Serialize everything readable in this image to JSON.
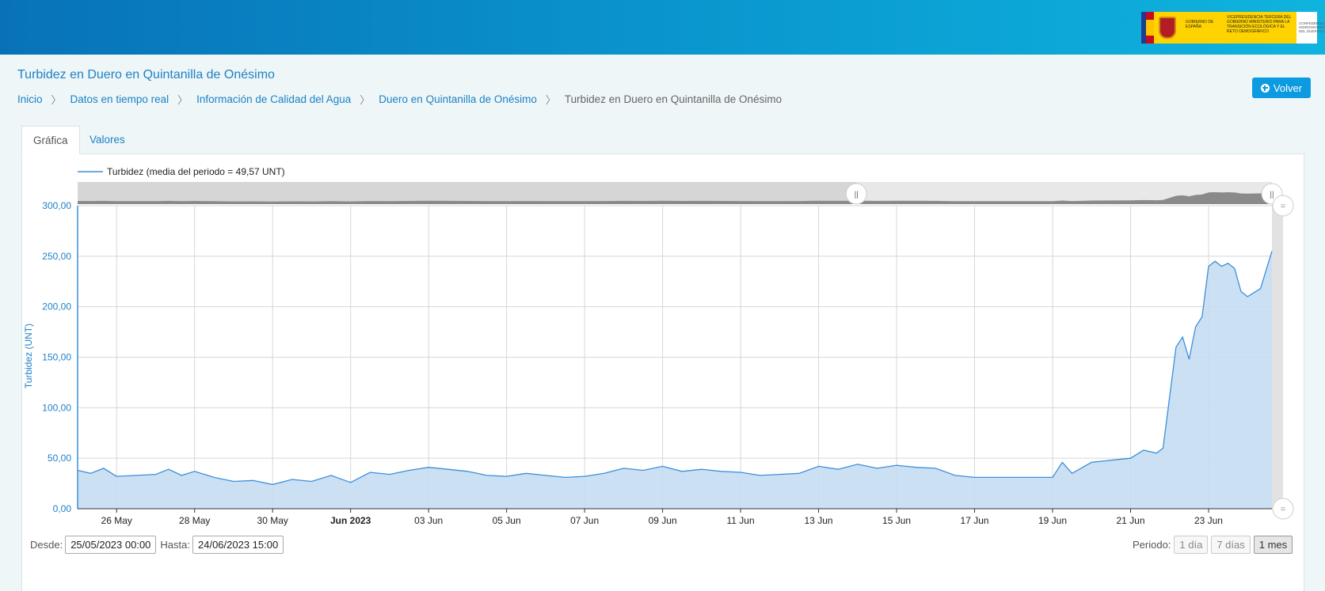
{
  "header": {
    "logo_left": "GOBIERNO DE ESPAÑA",
    "logo_mid": "VICEPRESIDENCIA TERCERA DEL GOBIERNO MINISTERIO PARA LA TRANSICIÓN ECOLÓGICA Y EL RETO DEMOGRÁFICO",
    "logo_right": "CONFEDERACIÓN HIDROGRÁFICA DEL DUERO O.A."
  },
  "page": {
    "title": "Turbidez en Duero en Quintanilla de Onésimo",
    "back_label": "Volver"
  },
  "breadcrumb": [
    "Inicio",
    "Datos en tiempo real",
    "Información de Calidad del Agua",
    "Duero en Quintanilla de Onésimo",
    "Turbidez en Duero en Quintanilla de Onésimo"
  ],
  "tabs": [
    "Gráfica",
    "Valores"
  ],
  "controls": {
    "desde_label": "Desde:",
    "desde_value": "25/05/2023 00:00",
    "hasta_label": "Hasta:",
    "hasta_value": "24/06/2023 15:00",
    "periodo_label": "Periodo:",
    "periodo_options": [
      "1 día",
      "7 días",
      "1 mes"
    ],
    "periodo_selected": "1 mes"
  },
  "colors": {
    "line": "#3b8fd9",
    "area": "#c6ddf3",
    "link": "#1d82c6",
    "button": "#0c9ae0"
  },
  "chart_data": {
    "type": "area",
    "legend": "Turbidez  (media del periodo = 49,57 UNT)",
    "ylabel": "Turbidez (UNT)",
    "ylim": [
      0,
      300
    ],
    "yticks": [
      "0,00",
      "50,00",
      "100,00",
      "150,00",
      "200,00",
      "250,00",
      "300,00"
    ],
    "x_range": [
      "2023-05-25 00:00",
      "2023-06-24 15:00"
    ],
    "xticks": [
      {
        "date": "2023-05-26",
        "label": "26 May"
      },
      {
        "date": "2023-05-28",
        "label": "28 May"
      },
      {
        "date": "2023-05-30",
        "label": "30 May"
      },
      {
        "date": "2023-06-01",
        "label": "Jun 2023",
        "bold": true
      },
      {
        "date": "2023-06-03",
        "label": "03 Jun"
      },
      {
        "date": "2023-06-05",
        "label": "05 Jun"
      },
      {
        "date": "2023-06-07",
        "label": "07 Jun"
      },
      {
        "date": "2023-06-09",
        "label": "09 Jun"
      },
      {
        "date": "2023-06-11",
        "label": "11 Jun"
      },
      {
        "date": "2023-06-13",
        "label": "13 Jun"
      },
      {
        "date": "2023-06-15",
        "label": "15 Jun"
      },
      {
        "date": "2023-06-17",
        "label": "17 Jun"
      },
      {
        "date": "2023-06-19",
        "label": "19 Jun"
      },
      {
        "date": "2023-06-21",
        "label": "21 Jun"
      },
      {
        "date": "2023-06-23",
        "label": "23 Jun"
      }
    ],
    "series": [
      {
        "name": "Turbidez",
        "points": [
          [
            "2023-05-25 00:00",
            38
          ],
          [
            "2023-05-25 08:00",
            35
          ],
          [
            "2023-05-25 16:00",
            40
          ],
          [
            "2023-05-26 00:00",
            32
          ],
          [
            "2023-05-26 12:00",
            33
          ],
          [
            "2023-05-27 00:00",
            34
          ],
          [
            "2023-05-27 08:00",
            39
          ],
          [
            "2023-05-27 16:00",
            33
          ],
          [
            "2023-05-28 00:00",
            37
          ],
          [
            "2023-05-28 12:00",
            31
          ],
          [
            "2023-05-29 00:00",
            27
          ],
          [
            "2023-05-29 12:00",
            28
          ],
          [
            "2023-05-30 00:00",
            24
          ],
          [
            "2023-05-30 12:00",
            29
          ],
          [
            "2023-05-31 00:00",
            27
          ],
          [
            "2023-05-31 12:00",
            33
          ],
          [
            "2023-06-01 00:00",
            26
          ],
          [
            "2023-06-01 12:00",
            36
          ],
          [
            "2023-06-02 00:00",
            34
          ],
          [
            "2023-06-02 12:00",
            38
          ],
          [
            "2023-06-03 00:00",
            41
          ],
          [
            "2023-06-03 12:00",
            39
          ],
          [
            "2023-06-04 00:00",
            37
          ],
          [
            "2023-06-04 12:00",
            33
          ],
          [
            "2023-06-05 00:00",
            32
          ],
          [
            "2023-06-05 12:00",
            35
          ],
          [
            "2023-06-06 00:00",
            33
          ],
          [
            "2023-06-06 12:00",
            31
          ],
          [
            "2023-06-07 00:00",
            32
          ],
          [
            "2023-06-07 12:00",
            35
          ],
          [
            "2023-06-08 00:00",
            40
          ],
          [
            "2023-06-08 12:00",
            38
          ],
          [
            "2023-06-09 00:00",
            42
          ],
          [
            "2023-06-09 12:00",
            37
          ],
          [
            "2023-06-10 00:00",
            39
          ],
          [
            "2023-06-10 12:00",
            37
          ],
          [
            "2023-06-11 00:00",
            36
          ],
          [
            "2023-06-11 12:00",
            33
          ],
          [
            "2023-06-12 00:00",
            34
          ],
          [
            "2023-06-12 12:00",
            35
          ],
          [
            "2023-06-13 00:00",
            42
          ],
          [
            "2023-06-13 12:00",
            39
          ],
          [
            "2023-06-14 00:00",
            44
          ],
          [
            "2023-06-14 12:00",
            40
          ],
          [
            "2023-06-15 00:00",
            43
          ],
          [
            "2023-06-15 12:00",
            41
          ],
          [
            "2023-06-16 00:00",
            40
          ],
          [
            "2023-06-16 12:00",
            33
          ],
          [
            "2023-06-17 00:00",
            31
          ],
          [
            "2023-06-17 12:00",
            31
          ],
          [
            "2023-06-18 00:00",
            31
          ],
          [
            "2023-06-18 12:00",
            31
          ],
          [
            "2023-06-19 00:00",
            31
          ],
          [
            "2023-06-19 06:00",
            46
          ],
          [
            "2023-06-19 12:00",
            35
          ],
          [
            "2023-06-20 00:00",
            46
          ],
          [
            "2023-06-20 12:00",
            48
          ],
          [
            "2023-06-21 00:00",
            50
          ],
          [
            "2023-06-21 08:00",
            58
          ],
          [
            "2023-06-21 16:00",
            55
          ],
          [
            "2023-06-21 20:00",
            60
          ],
          [
            "2023-06-22 00:00",
            110
          ],
          [
            "2023-06-22 04:00",
            160
          ],
          [
            "2023-06-22 08:00",
            170
          ],
          [
            "2023-06-22 12:00",
            148
          ],
          [
            "2023-06-22 16:00",
            180
          ],
          [
            "2023-06-22 20:00",
            190
          ],
          [
            "2023-06-23 00:00",
            240
          ],
          [
            "2023-06-23 04:00",
            245
          ],
          [
            "2023-06-23 08:00",
            240
          ],
          [
            "2023-06-23 12:00",
            243
          ],
          [
            "2023-06-23 16:00",
            238
          ],
          [
            "2023-06-23 20:00",
            215
          ],
          [
            "2023-06-24 00:00",
            210
          ],
          [
            "2023-06-24 08:00",
            218
          ],
          [
            "2023-06-24 15:00",
            255
          ]
        ]
      }
    ],
    "grid": true
  }
}
